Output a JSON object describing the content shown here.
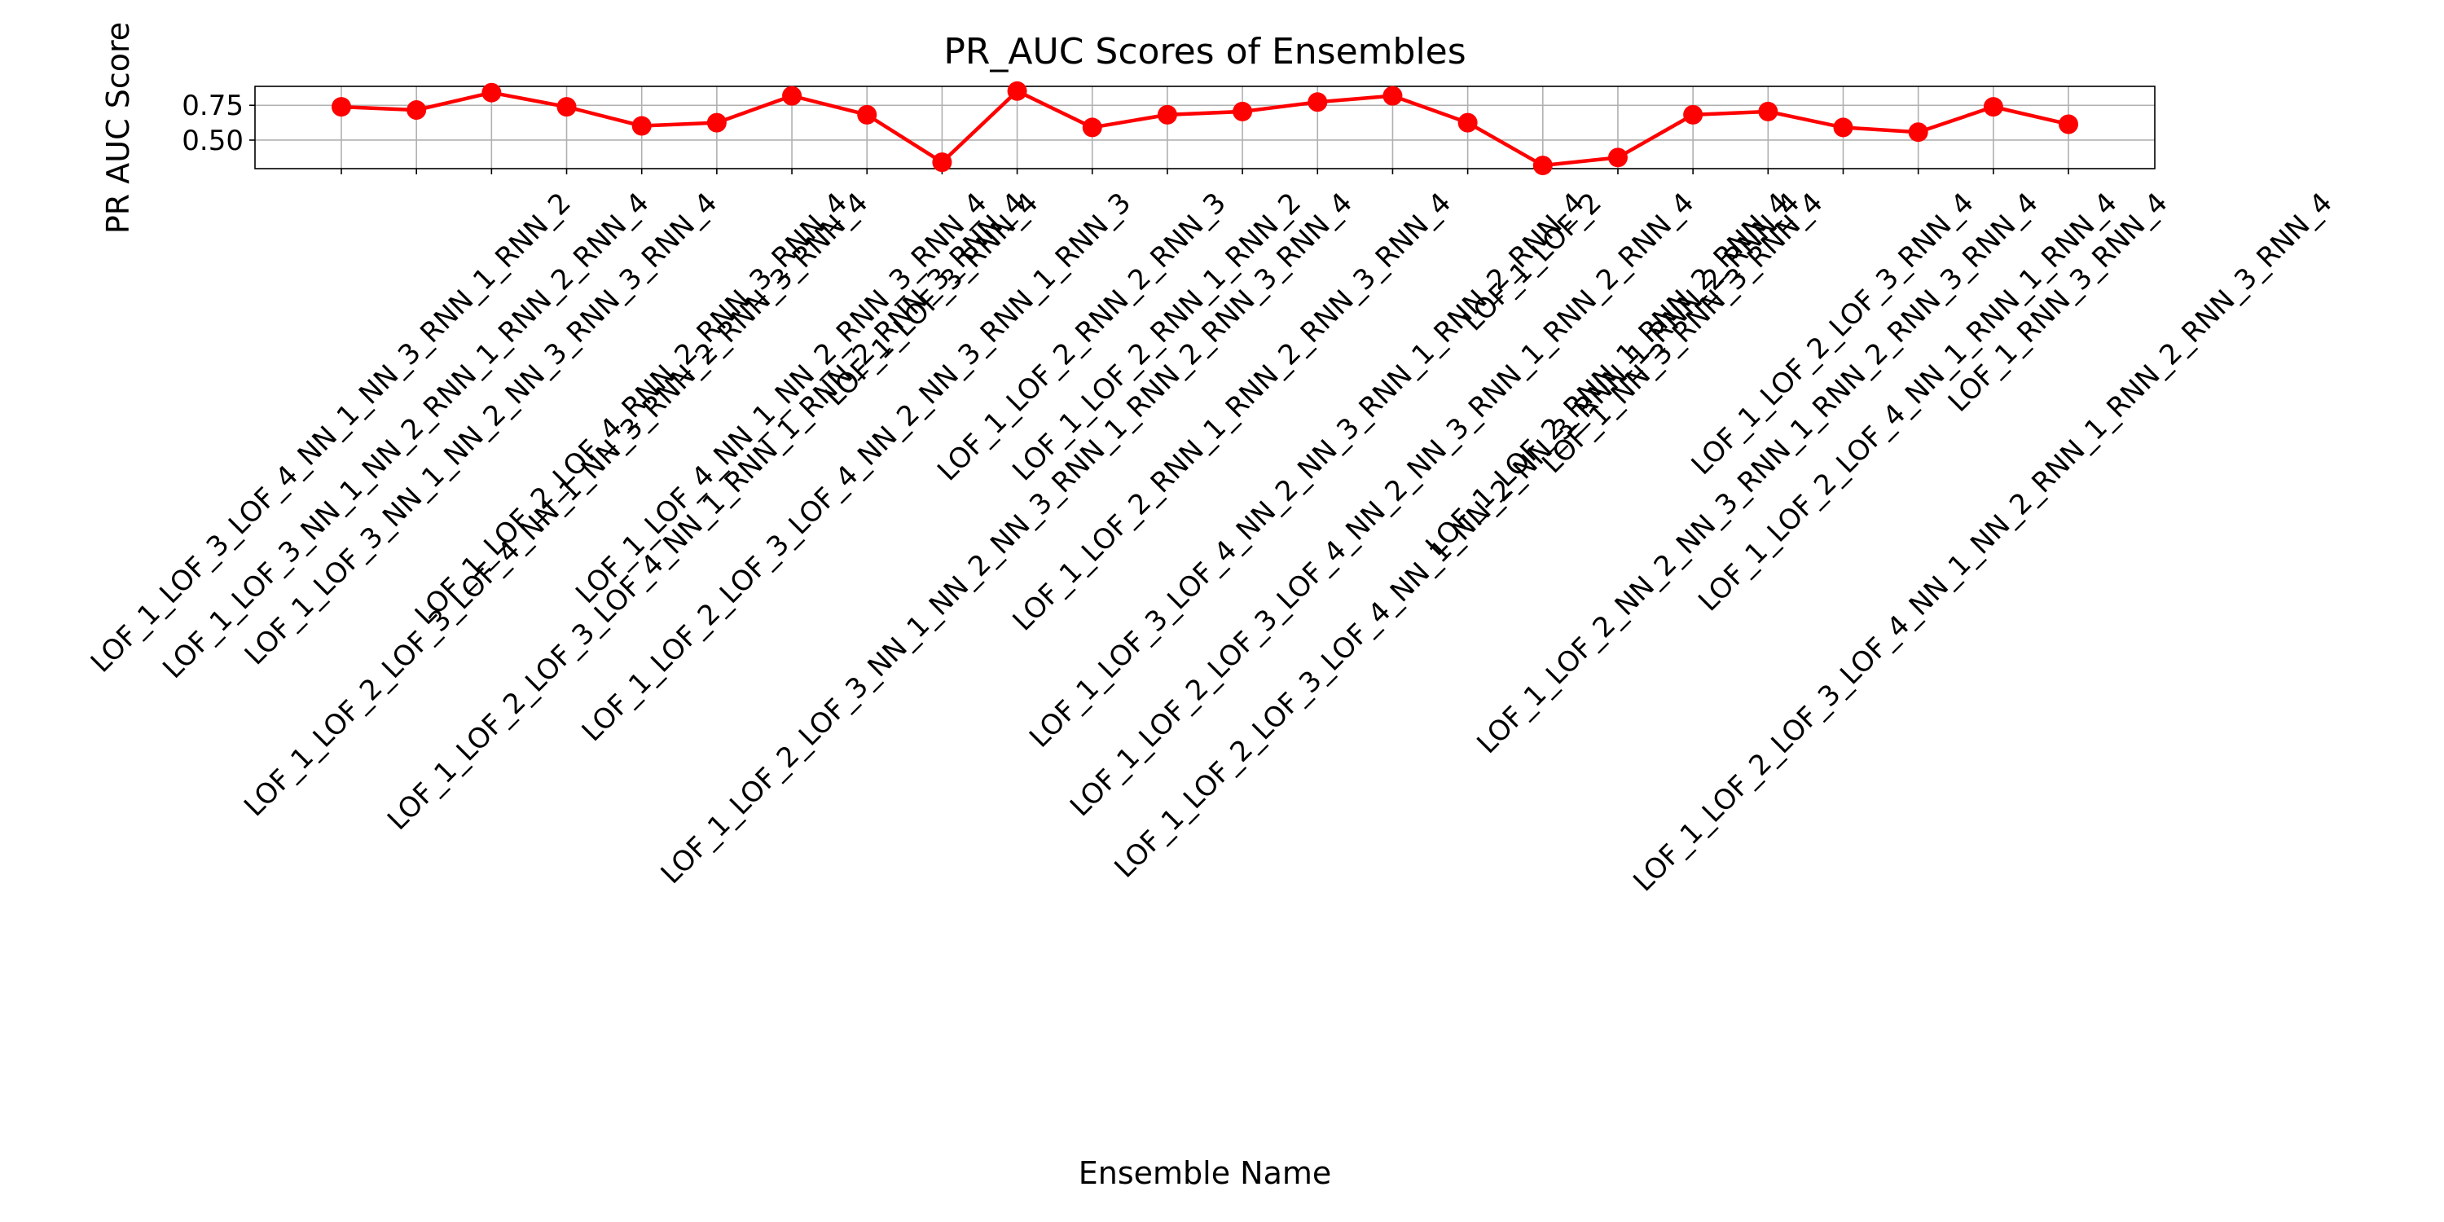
{
  "chart_data": {
    "type": "line",
    "title": "PR_AUC Scores of Ensembles",
    "x_label": "Ensemble Name",
    "y_label": "PR AUC Score",
    "categories": [
      "LOF_1_LOF_3_LOF_4_NN_1_NN_3_RNN_1_RNN_2",
      "LOF_1_LOF_3_NN_1_NN_2_RNN_1_RNN_2_RNN_4",
      "LOF_1_LOF_3_NN_1_NN_2_NN_3_RNN_3_RNN_4",
      "LOF_1_LOF_2_LOF_3_LOF_4_NN_1_NN_3_RNN_2_RNN_3_RNN_4",
      "LOF_1_LOF_2_LOF_4_RNN_2_RNN_3_RNN_4",
      "LOF_1_LOF_2_LOF_3_LOF_4_NN_1_RNN_1_RNN_2_RNN_3_RNN_4",
      "LOF_1_LOF_4_NN_1_NN_2_RNN_3_RNN_4",
      "LOF_1_LOF_2_LOF_3_LOF_4_NN_2_NN_3_RNN_1_RNN_3",
      "LOF_1_LOF_3_RNN_4",
      "LOF_1_LOF_2_LOF_3_NN_1_NN_2_NN_3_RNN_1_RNN_2_RNN_3_RNN_4",
      "LOF_1_LOF_2_RNN_2_RNN_3",
      "LOF_1_LOF_2_RNN_1_RNN_2",
      "LOF_1_LOF_2_RNN_1_RNN_2_RNN_3_RNN_4",
      "LOF_1_LOF_3_LOF_4_NN_2_NN_3_RNN_1_RNN_2_RNN_4",
      "LOF_1_LOF_2_LOF_3_LOF_4_NN_2_NN_3_RNN_1_RNN_2_RNN_4",
      "LOF_1_LOF_2_LOF_3_LOF_4_NN_1_NN_2_NN_3_RNN_1_RNN_2_RNN_4",
      "LOF_1_LOF_2",
      "LOF_1_LOF_2_RNN_1_RNN_2_RNN_4",
      "LOF_1_NN_3_RNN_3_RNN_4",
      "LOF_1_LOF_2_NN_2_NN_3_RNN_1_RNN_2_RNN_3_RNN_4",
      "LOF_1_LOF_2_LOF_3_RNN_4",
      "LOF_1_LOF_2_LOF_4_NN_1_RNN_1_RNN_4",
      "LOF_1_LOF_2_LOF_3_LOF_4_NN_1_NN_2_RNN_1_RNN_2_RNN_3_RNN_4",
      "LOF_1_RNN_3_RNN_4"
    ],
    "values": [
      0.739,
      0.716,
      0.841,
      0.739,
      0.602,
      0.625,
      0.818,
      0.682,
      0.341,
      0.852,
      0.591,
      0.682,
      0.705,
      0.773,
      0.818,
      0.625,
      0.318,
      0.375,
      0.682,
      0.705,
      0.591,
      0.557,
      0.739,
      0.614
    ],
    "color": "#ff0000",
    "ylim": [
      0.295,
      0.886
    ],
    "yticks": [
      {
        "value": 0.5,
        "label": "0.50"
      },
      0.75
    ],
    "grid": true
  }
}
